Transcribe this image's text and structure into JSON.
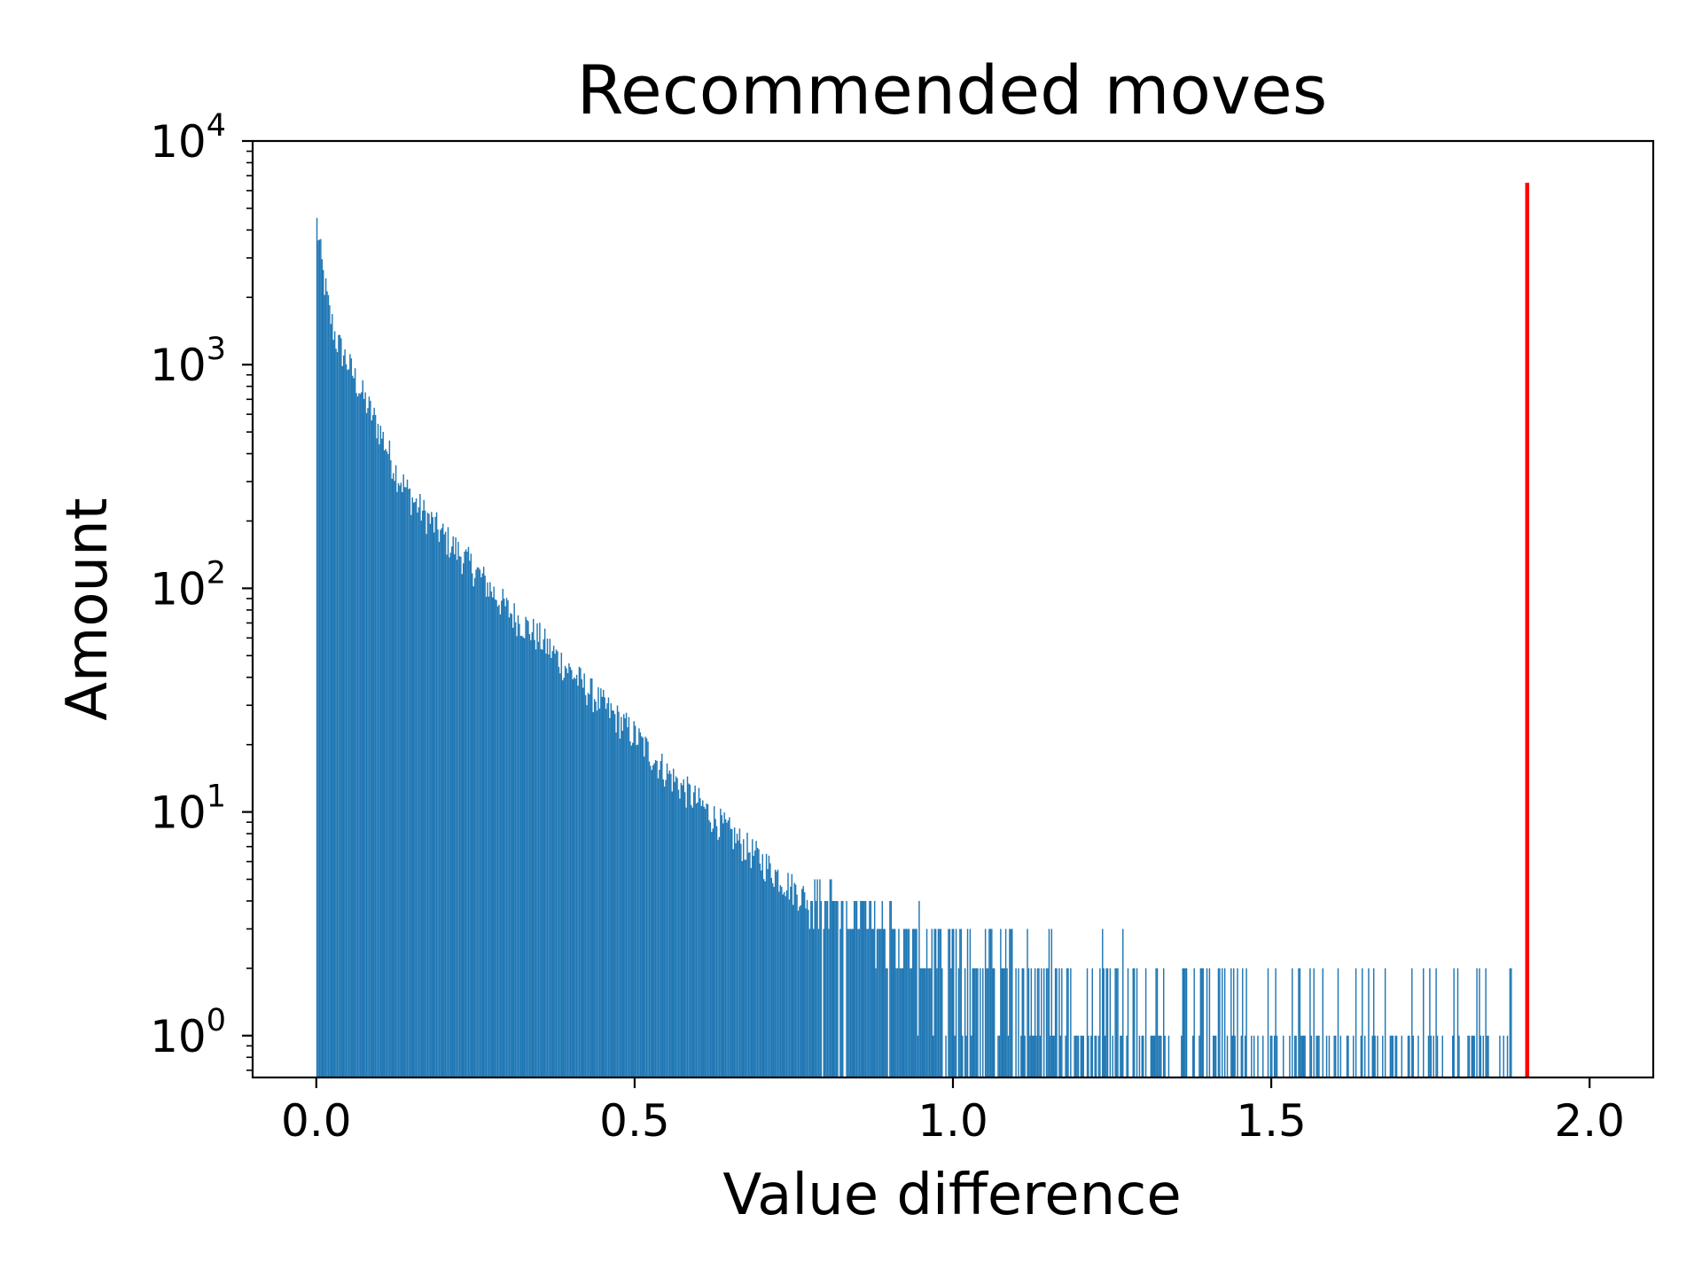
{
  "chart_data": {
    "type": "bar",
    "title": "Recommended moves",
    "xlabel": "Value difference",
    "ylabel": "Amount",
    "xlim": [
      -0.1,
      2.1
    ],
    "ylim": [
      0.65,
      10000
    ],
    "yscale": "log",
    "grid": false,
    "legend": "none",
    "xticks": [
      0.0,
      0.5,
      1.0,
      1.5,
      2.0
    ],
    "xtick_labels": [
      "0.0",
      "0.5",
      "1.0",
      "1.5",
      "2.0"
    ],
    "yticks": [
      1,
      10,
      100,
      1000,
      10000
    ],
    "ytick_labels": [
      {
        "base": "10",
        "exp": "0"
      },
      {
        "base": "10",
        "exp": "1"
      },
      {
        "base": "10",
        "exp": "2"
      },
      {
        "base": "10",
        "exp": "3"
      },
      {
        "base": "10",
        "exp": "4"
      }
    ],
    "histogram": {
      "bin_width": 0.002,
      "x": [
        0.0,
        0.01,
        0.02,
        0.03,
        0.05,
        0.075,
        0.1,
        0.125,
        0.15,
        0.2,
        0.25,
        0.3,
        0.35,
        0.4,
        0.45,
        0.5,
        0.55,
        0.6,
        0.65,
        0.7,
        0.75,
        0.8,
        0.85,
        0.9,
        0.95,
        1.0,
        1.05,
        1.1,
        1.15,
        1.2,
        1.25,
        1.3,
        1.35,
        1.4,
        1.45,
        1.5,
        1.55,
        1.6,
        1.7,
        1.8,
        1.88
      ],
      "counts": [
        4300,
        2500,
        1700,
        1300,
        1000,
        700,
        500,
        330,
        250,
        170,
        120,
        80,
        60,
        42,
        30,
        22,
        15,
        11,
        8,
        6,
        4.5,
        3.5,
        2.8,
        2.3,
        2,
        1.7,
        1.5,
        1.4,
        1.3,
        1.2,
        1.15,
        1.1,
        1.05,
        1.0,
        1.0,
        1.0,
        0.9,
        0.8,
        0.6,
        0.5,
        0.4
      ],
      "color": "#1f77b4"
    },
    "marker_line": {
      "x": 1.902,
      "y_top": 6500,
      "color": "#ff0000"
    }
  }
}
